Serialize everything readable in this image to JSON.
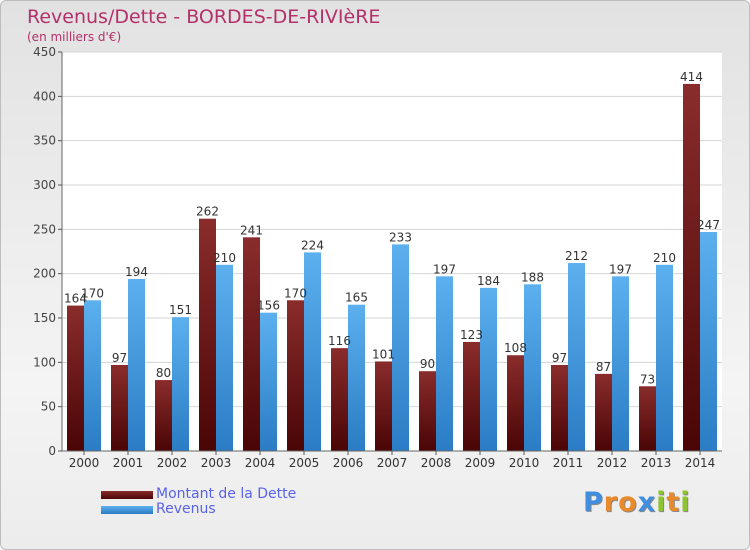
{
  "title": "Revenus/Dette - BORDES-DE-RIVIèRE",
  "subtitle": "(en milliers d'€)",
  "logo_letters": [
    {
      "ch": "P",
      "color": "#3f8ee0"
    },
    {
      "ch": "r",
      "color": "#e98a2b"
    },
    {
      "ch": "o",
      "color": "#e98a2b"
    },
    {
      "ch": "x",
      "color": "#3f8ee0"
    },
    {
      "ch": "i",
      "color": "#8fc332"
    },
    {
      "ch": "t",
      "color": "#e98a2b"
    },
    {
      "ch": "i",
      "color": "#8fc332"
    }
  ],
  "chart_data": {
    "type": "bar",
    "categories": [
      "2000",
      "2001",
      "2002",
      "2003",
      "2004",
      "2005",
      "2006",
      "2007",
      "2008",
      "2009",
      "2010",
      "2011",
      "2012",
      "2013",
      "2014"
    ],
    "series": [
      {
        "name": "Montant de la Dette",
        "color": "#7a1a1a",
        "values": [
          164,
          97,
          80,
          262,
          241,
          170,
          116,
          101,
          90,
          123,
          108,
          97,
          87,
          73,
          414
        ]
      },
      {
        "name": "Revenus",
        "color": "#4a9de0",
        "values": [
          170,
          194,
          151,
          210,
          156,
          224,
          165,
          233,
          197,
          184,
          188,
          212,
          197,
          210,
          247
        ]
      }
    ],
    "ylim": [
      0,
      450
    ],
    "yticks": [
      0,
      50,
      100,
      150,
      200,
      250,
      300,
      350,
      400,
      450
    ],
    "grid": true,
    "legend": "bottom-left"
  }
}
